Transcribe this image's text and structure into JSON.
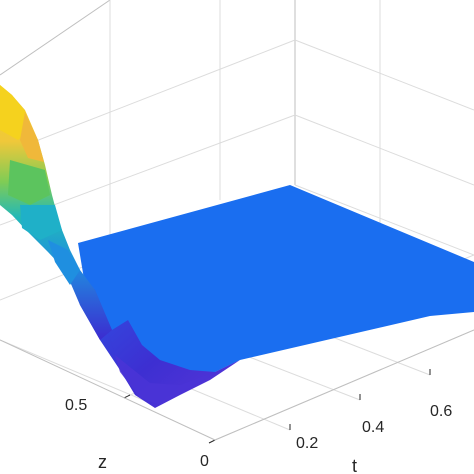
{
  "chart_data": {
    "type": "surface",
    "title": "",
    "xlabel": "t",
    "ylabel": "z",
    "zlabel": "",
    "x_ticks": [
      "0.2",
      "0.4",
      "0.6"
    ],
    "y_ticks": [
      "0",
      "0.5"
    ],
    "grid": true,
    "colormap": "parula",
    "colors": {
      "plateau": "#1a6ef0",
      "trough": "#3c2bd0",
      "mid": "#1fb0c8",
      "green": "#4cc46a",
      "yellow": "#f5d21e"
    },
    "surface_profile": {
      "description_axis": "z",
      "z": [
        1.0,
        0.85,
        0.7,
        0.55,
        0.5,
        0.45,
        0.35,
        0.2,
        0.0
      ],
      "value_at_t0": [
        0.05,
        0.1,
        0.3,
        0.55,
        0.85,
        0.95,
        0.7,
        0.15,
        0.05
      ]
    },
    "plateau_value": 0.05
  }
}
